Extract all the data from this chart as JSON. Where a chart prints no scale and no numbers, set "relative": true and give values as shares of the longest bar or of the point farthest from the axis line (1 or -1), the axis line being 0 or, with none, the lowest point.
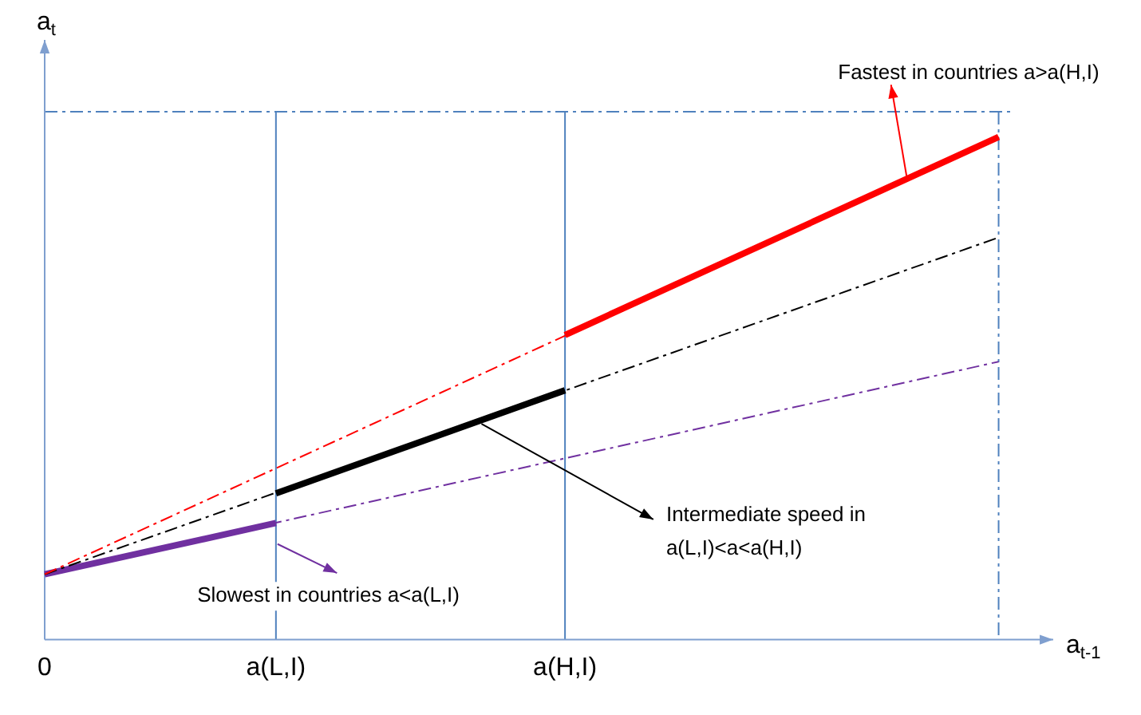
{
  "chart_data": {
    "type": "line",
    "relative": true,
    "xlabel": "a$_{t-1}$",
    "ylabel": "a$_{t}$",
    "categories": [
      "0",
      null,
      null,
      null,
      null,
      null,
      null,
      null,
      "a(L,I)",
      null,
      null,
      null,
      null,
      null,
      null,
      null,
      null,
      null,
      "a(H,I)",
      null,
      null,
      null,
      null,
      null,
      null,
      null,
      null,
      null,
      null,
      null,
      null,
      null,
      null,
      null,
      null,
      null
    ],
    "grid": false,
    "legend": false,
    "marker": "none",
    "series": [
      {
        "color": "#ff0000",
        "line_style": "dashed",
        "values": [
          0.13,
          null,
          null,
          null,
          null,
          null,
          null,
          null,
          null,
          null,
          null,
          null,
          null,
          null,
          null,
          null,
          null,
          null,
          null,
          null,
          null,
          null,
          null,
          null,
          null,
          null,
          null,
          null,
          null,
          null,
          null,
          null,
          null,
          1,
          null,
          null
        ]
      },
      {
        "color": "#000000",
        "line_style": "dashed",
        "values": [
          0.13,
          null,
          null,
          null,
          null,
          null,
          null,
          null,
          null,
          null,
          null,
          null,
          null,
          null,
          null,
          null,
          null,
          null,
          null,
          null,
          null,
          null,
          null,
          null,
          null,
          null,
          null,
          null,
          null,
          null,
          null,
          null,
          null,
          0.8,
          null,
          null
        ]
      },
      {
        "color": "#7030a0",
        "line_style": "dashed",
        "values": [
          0.13,
          null,
          null,
          null,
          null,
          null,
          null,
          null,
          null,
          null,
          null,
          null,
          null,
          null,
          null,
          null,
          null,
          null,
          null,
          null,
          null,
          null,
          null,
          null,
          null,
          null,
          null,
          null,
          null,
          null,
          null,
          null,
          null,
          0.553,
          null,
          null
        ]
      },
      {
        "color": "#ff0000",
        "line_style": "solid",
        "values": [
          null,
          null,
          null,
          null,
          null,
          null,
          null,
          null,
          null,
          null,
          null,
          null,
          null,
          null,
          null,
          null,
          null,
          null,
          0.606,
          null,
          null,
          null,
          null,
          null,
          null,
          null,
          null,
          null,
          null,
          null,
          null,
          null,
          null,
          1,
          null,
          null
        ]
      },
      {
        "color": "#000000",
        "line_style": "solid",
        "values": [
          null,
          null,
          null,
          null,
          null,
          null,
          null,
          null,
          0.291,
          null,
          null,
          null,
          null,
          null,
          null,
          null,
          null,
          null,
          0.496,
          null,
          null,
          null,
          null,
          null,
          null,
          null,
          null,
          null,
          null,
          null,
          null,
          null,
          null,
          null,
          null,
          null
        ]
      },
      {
        "color": "#7030a0",
        "line_style": "solid",
        "values": [
          0.13,
          null,
          null,
          null,
          null,
          null,
          null,
          null,
          0.232,
          null,
          null,
          null,
          null,
          null,
          null,
          null,
          null,
          null,
          null,
          null,
          null,
          null,
          null,
          null,
          null,
          null,
          null,
          null,
          null,
          null,
          null,
          null,
          null,
          null,
          null,
          null
        ]
      }
    ],
    "ref_lines": [
      {
        "axis": "x",
        "value": "a(L,I)",
        "color": "#4f81bd",
        "line_style": "solid"
      },
      {
        "axis": "x",
        "value": "a(H,I)",
        "color": "#4f81bd",
        "line_style": "solid"
      }
    ],
    "annotations": [
      "Fastest in countries a>a(H,I)",
      "Intermediate speed in\na(L,I)<a<a(H,I)",
      "Slowest in countries a<a(L,I)"
    ]
  }
}
